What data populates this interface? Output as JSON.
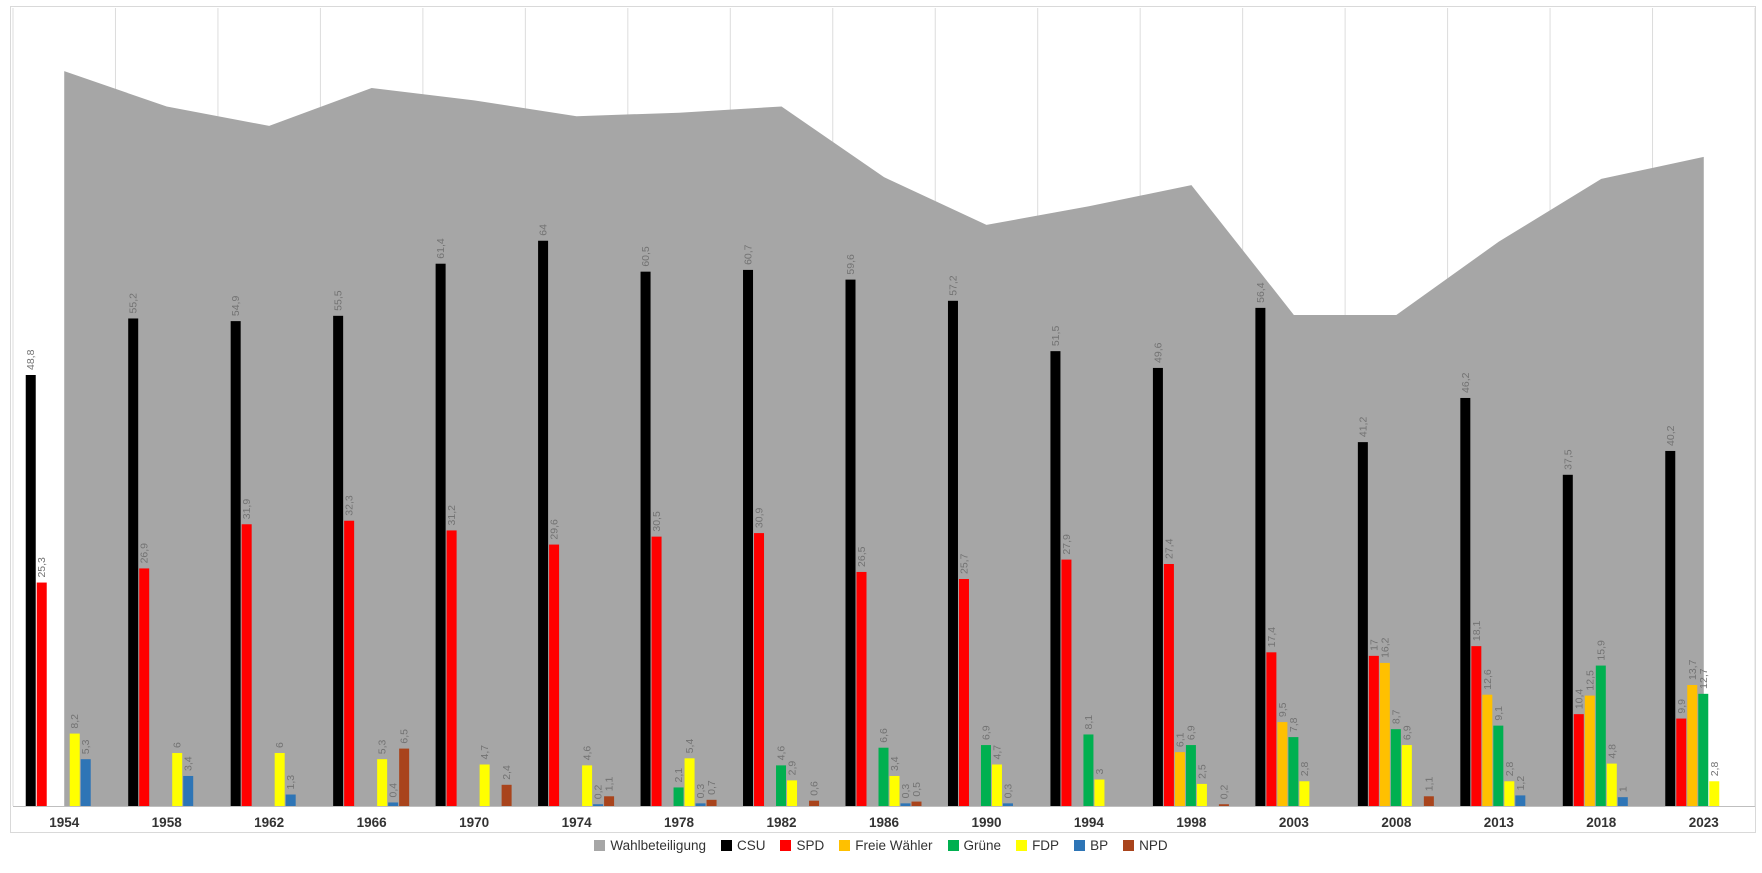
{
  "chart_data": {
    "type": "bar+area",
    "title": "",
    "xlabel": "",
    "ylabel": "",
    "ylim": [
      0,
      90
    ],
    "grid": "vertical-only",
    "legend_position": "bottom-center",
    "value_label_format": "german-decimal-comma",
    "categories": [
      "1954",
      "1958",
      "1962",
      "1966",
      "1970",
      "1974",
      "1978",
      "1982",
      "1986",
      "1990",
      "1994",
      "1998",
      "2003",
      "2008",
      "2013",
      "2018",
      "2023"
    ],
    "area_series": {
      "name": "Wahlbeteiligung",
      "color": "#A6A6A6",
      "values": [
        83.2,
        79.2,
        77.0,
        81.3,
        79.9,
        78.1,
        78.5,
        79.2,
        71.2,
        65.8,
        67.9,
        70.3,
        55.6,
        55.6,
        63.9,
        71.0,
        73.5
      ],
      "labeled": false
    },
    "series": [
      {
        "name": "CSU",
        "color": "#000000",
        "values": [
          48.8,
          55.2,
          54.9,
          55.5,
          61.4,
          64,
          60.5,
          60.7,
          59.6,
          57.2,
          51.5,
          49.6,
          56.4,
          41.2,
          46.2,
          37.5,
          40.2
        ]
      },
      {
        "name": "SPD",
        "color": "#FF0000",
        "values": [
          25.3,
          26.9,
          31.9,
          32.3,
          31.2,
          29.6,
          30.5,
          30.9,
          26.5,
          25.7,
          27.9,
          27.4,
          17.4,
          17,
          18.1,
          10.4,
          9.9
        ]
      },
      {
        "name": "Freie Wähler",
        "color": "#FFC000",
        "values": [
          null,
          null,
          null,
          null,
          null,
          null,
          null,
          null,
          null,
          null,
          null,
          6.1,
          9.5,
          16.2,
          12.6,
          12.5,
          13.7
        ]
      },
      {
        "name": "Grüne",
        "color": "#00B050",
        "values": [
          null,
          null,
          null,
          null,
          null,
          null,
          2.1,
          4.6,
          6.6,
          6.9,
          8.1,
          6.9,
          7.8,
          8.7,
          9.1,
          15.9,
          12.7
        ]
      },
      {
        "name": "FDP",
        "color": "#FFFF00",
        "values": [
          8.2,
          6,
          6,
          5.3,
          4.7,
          4.6,
          5.4,
          2.9,
          3.4,
          4.7,
          3,
          2.5,
          2.8,
          6.9,
          2.8,
          4.8,
          2.8
        ]
      },
      {
        "name": "BP",
        "color": "#2E75B6",
        "values": [
          5.3,
          3.4,
          1.3,
          0.4,
          null,
          0.2,
          0.3,
          null,
          0.3,
          0.3,
          null,
          null,
          null,
          null,
          1.2,
          1,
          null
        ]
      },
      {
        "name": "NPD",
        "color": "#A9441C",
        "values": [
          null,
          null,
          null,
          6.5,
          2.4,
          1.1,
          0.7,
          0.6,
          0.5,
          null,
          null,
          0.2,
          null,
          1.1,
          null,
          null,
          null
        ]
      }
    ],
    "colors": {
      "background": "#FFFFFF",
      "gridline": "#DCDCDC",
      "axis_line": "#BFBFBF",
      "chart_border": "#D9D9D9",
      "data_label": "#737373",
      "year_label": "#333333",
      "legend_text": "#333333"
    }
  }
}
